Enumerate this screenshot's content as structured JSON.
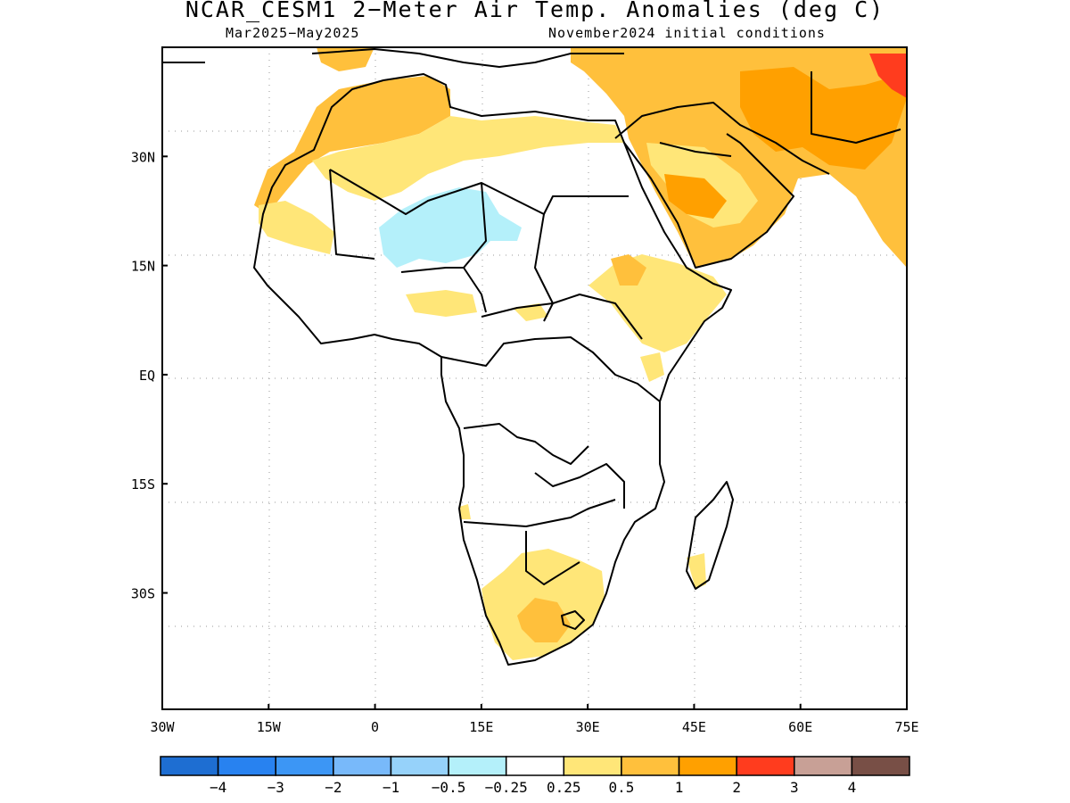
{
  "header": {
    "title": "NCAR_CESM1 2−Meter Air Temp. Anomalies (deg C)",
    "period": "Mar2025−May2025",
    "init": "November2024 initial conditions"
  },
  "map": {
    "lon_range": [
      -30,
      75
    ],
    "lat_range": [
      -46,
      45
    ],
    "lon_ticks": [
      {
        "value": -30,
        "label": "30W"
      },
      {
        "value": -15,
        "label": "15W"
      },
      {
        "value": 0,
        "label": "0"
      },
      {
        "value": 15,
        "label": "15E"
      },
      {
        "value": 30,
        "label": "30E"
      },
      {
        "value": 45,
        "label": "45E"
      },
      {
        "value": 60,
        "label": "60E"
      },
      {
        "value": 75,
        "label": "75E"
      }
    ],
    "lat_ticks": [
      {
        "value": 30,
        "label": "30N"
      },
      {
        "value": 15,
        "label": "15N"
      },
      {
        "value": 0,
        "label": "EQ"
      },
      {
        "value": -15,
        "label": "15S"
      },
      {
        "value": -30,
        "label": "30S"
      }
    ],
    "gridlines": true
  },
  "colorbar": {
    "colors": [
      "#1e6ed2",
      "#2882f0",
      "#3c96f5",
      "#78b9fa",
      "#96d2fa",
      "#b4f0fa",
      "#ffffff",
      "#ffe678",
      "#ffc03c",
      "#ffa000",
      "#ff3c1e",
      "#c8a096",
      "#784f46"
    ],
    "labels": [
      "−4",
      "−3",
      "−2",
      "−1",
      "−0.5",
      "−0.25",
      "0.25",
      "0.5",
      "1",
      "2",
      "3",
      "4"
    ]
  }
}
